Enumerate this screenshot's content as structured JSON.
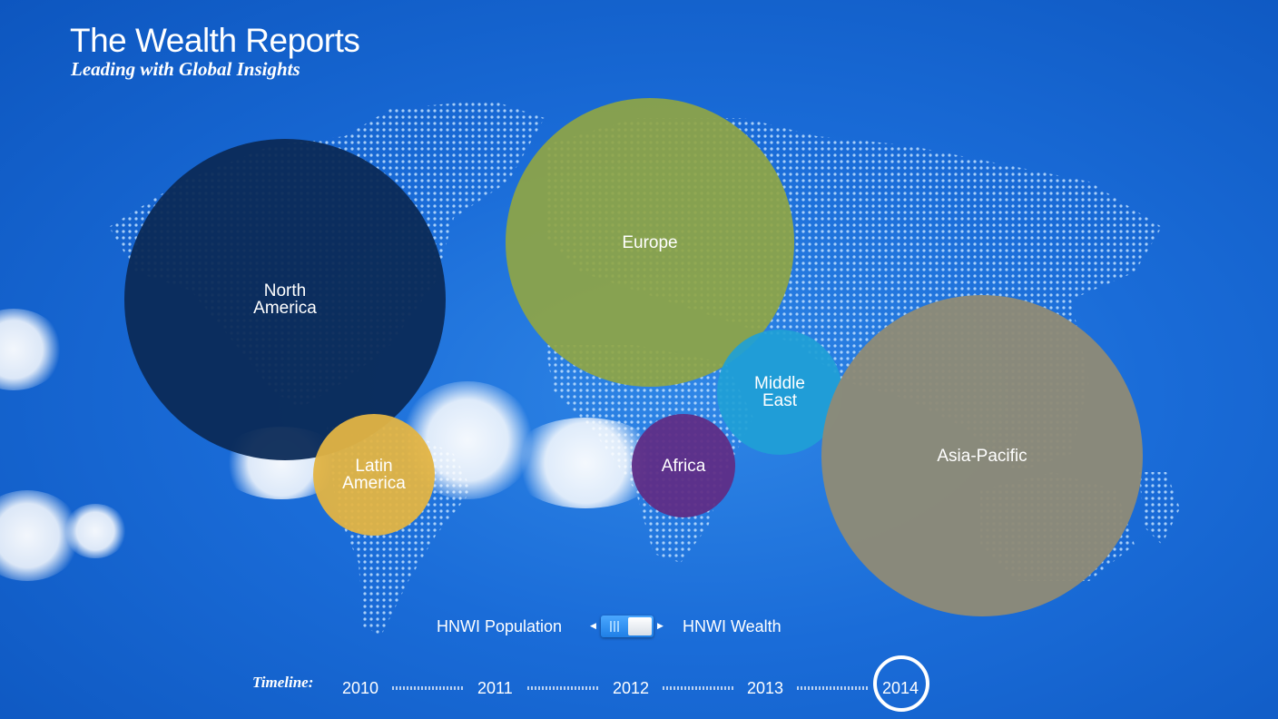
{
  "header": {
    "title": "The Wealth Reports",
    "subtitle": "Leading with Global Insights"
  },
  "regions": [
    {
      "label": "North America",
      "color": "#0b2a57"
    },
    {
      "label": "Europe",
      "color": "#8fa544"
    },
    {
      "label": "Middle East",
      "color": "#1fa0d6"
    },
    {
      "label": "Asia-Pacific",
      "color": "#8e8a77"
    },
    {
      "label": "Latin America",
      "color": "#e3b443"
    },
    {
      "label": "Africa",
      "color": "#5f2d86"
    }
  ],
  "toggle": {
    "left_label": "HNWI Population",
    "right_label": "HNWI Wealth"
  },
  "timeline": {
    "label": "Timeline:",
    "years": [
      "2010",
      "2011",
      "2012",
      "2013",
      "2014"
    ],
    "selected": "2014"
  },
  "colors": {
    "background": "#1a6cd8",
    "map_dots": "#bfe0ff"
  }
}
